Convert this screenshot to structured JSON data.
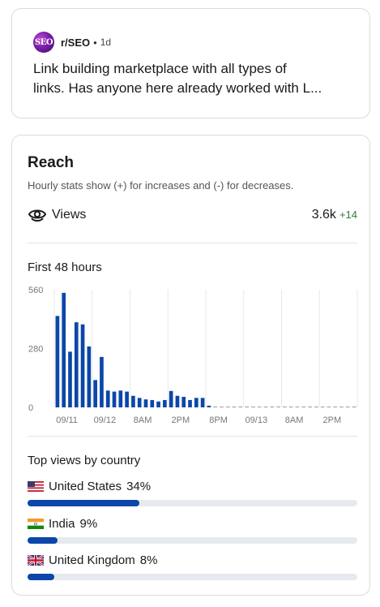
{
  "post": {
    "subreddit": "r/SEO",
    "separator": "•",
    "age": "1d",
    "avatar_text": "SEO",
    "title_line1": "Link building marketplace with all types of",
    "title_line2": "links. Has anyone here already worked with L..."
  },
  "reach": {
    "title": "Reach",
    "subtitle": "Hourly stats show (+) for increases and (-) for decreases.",
    "views_label": "Views",
    "views_value": "3.6k",
    "views_delta": "+14",
    "hours_title": "First 48 hours"
  },
  "chart_data": {
    "type": "bar",
    "y_ticks": [
      "560",
      "280",
      "0"
    ],
    "ylim": [
      0,
      560
    ],
    "x_tick_labels": [
      "09/11",
      "09/12",
      "8AM",
      "2PM",
      "8PM",
      "09/13",
      "8AM",
      "2PM"
    ],
    "values": [
      435,
      545,
      265,
      405,
      395,
      290,
      130,
      240,
      80,
      75,
      80,
      75,
      55,
      45,
      38,
      35,
      28,
      35,
      78,
      55,
      50,
      35,
      45,
      45,
      8,
      0,
      0,
      0,
      0,
      0,
      0,
      0,
      0,
      0,
      0,
      0,
      0,
      0,
      0,
      0,
      0,
      0,
      0,
      0,
      0,
      0,
      0,
      0
    ],
    "bar_color": "#0b47a8",
    "grid": true
  },
  "countries": {
    "title": "Top views by country",
    "items": [
      {
        "name": "United States",
        "pct_label": "34%",
        "value": 34,
        "flag": "us-flag-icon"
      },
      {
        "name": "India",
        "pct_label": "9%",
        "value": 9,
        "flag": "india-flag-icon"
      },
      {
        "name": "United Kingdom",
        "pct_label": "8%",
        "value": 8,
        "flag": "uk-flag-icon"
      }
    ]
  }
}
